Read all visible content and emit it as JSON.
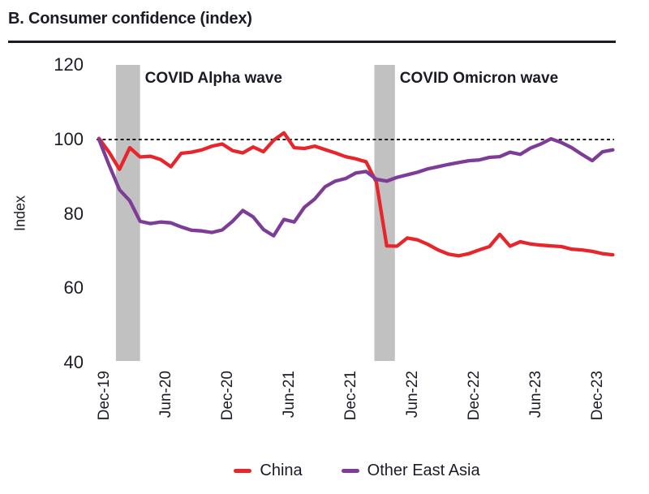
{
  "page": {
    "title": "B. Consumer confidence (index)"
  },
  "chart_data": {
    "type": "line",
    "title": "B. Consumer confidence (index)",
    "xlabel": "",
    "ylabel": "Index",
    "ylim": [
      40,
      120
    ],
    "yticks": [
      120,
      100,
      80,
      60,
      40
    ],
    "grid": false,
    "legend_position": "bottom-center",
    "reference_line": {
      "value": 100,
      "style": "dotted",
      "color": "#000000"
    },
    "band_color": "#c2c1c1",
    "x_unit": "month (Dec-19 = index 0, monthly points through Feb-24)",
    "n_points": 51,
    "x_ticks": [
      {
        "label": "Dec-19",
        "month": 0
      },
      {
        "label": "Jun-20",
        "month": 6
      },
      {
        "label": "Dec-20",
        "month": 12
      },
      {
        "label": "Jun-21",
        "month": 18
      },
      {
        "label": "Dec-21",
        "month": 24
      },
      {
        "label": "Jun-22",
        "month": 30
      },
      {
        "label": "Dec-22",
        "month": 36
      },
      {
        "label": "Jun-23",
        "month": 42
      },
      {
        "label": "Dec-23",
        "month": 48
      }
    ],
    "bands": [
      {
        "label": "COVID Alpha wave",
        "from_index": 1.65,
        "to_index": 4.0
      },
      {
        "label": "COVID Omicron wave",
        "from_index": 26.8,
        "to_index": 28.8
      }
    ],
    "series": [
      {
        "name": "China",
        "color": "#e7262b",
        "values": [
          100.3,
          96.5,
          92,
          97.8,
          95.3,
          95.5,
          94.6,
          92.7,
          96.3,
          96.6,
          97.2,
          98.2,
          98.8,
          97,
          96.4,
          98,
          96.7,
          99.8,
          101.8,
          97.8,
          97.6,
          98.2,
          97.3,
          96.4,
          95.4,
          94.8,
          94,
          88.5,
          71.4,
          71.3,
          73.5,
          73,
          71.8,
          70.3,
          69.2,
          68.7,
          69.3,
          70.3,
          71.2,
          74.5,
          71.3,
          72.5,
          71.9,
          71.6,
          71.4,
          71.2,
          70.5,
          70.3,
          69.9,
          69.3,
          69
        ]
      },
      {
        "name": "Other East Asia",
        "color": "#7d3d97",
        "values": [
          100,
          93,
          86.5,
          83.5,
          78,
          77.4,
          77.8,
          77.6,
          76.5,
          75.6,
          75.4,
          75,
          75.7,
          78,
          80.9,
          79.2,
          75.8,
          74.1,
          78.5,
          77.8,
          81.8,
          84,
          87.3,
          88.8,
          89.5,
          91,
          91.4,
          89.3,
          88.8,
          89.8,
          90.5,
          91.2,
          92.1,
          92.7,
          93.3,
          93.8,
          94.3,
          94.5,
          95.2,
          95.4,
          96.6,
          96,
          97.7,
          98.8,
          100.2,
          99.2,
          97.8,
          96,
          94.3,
          96.7,
          97.2
        ]
      }
    ]
  }
}
